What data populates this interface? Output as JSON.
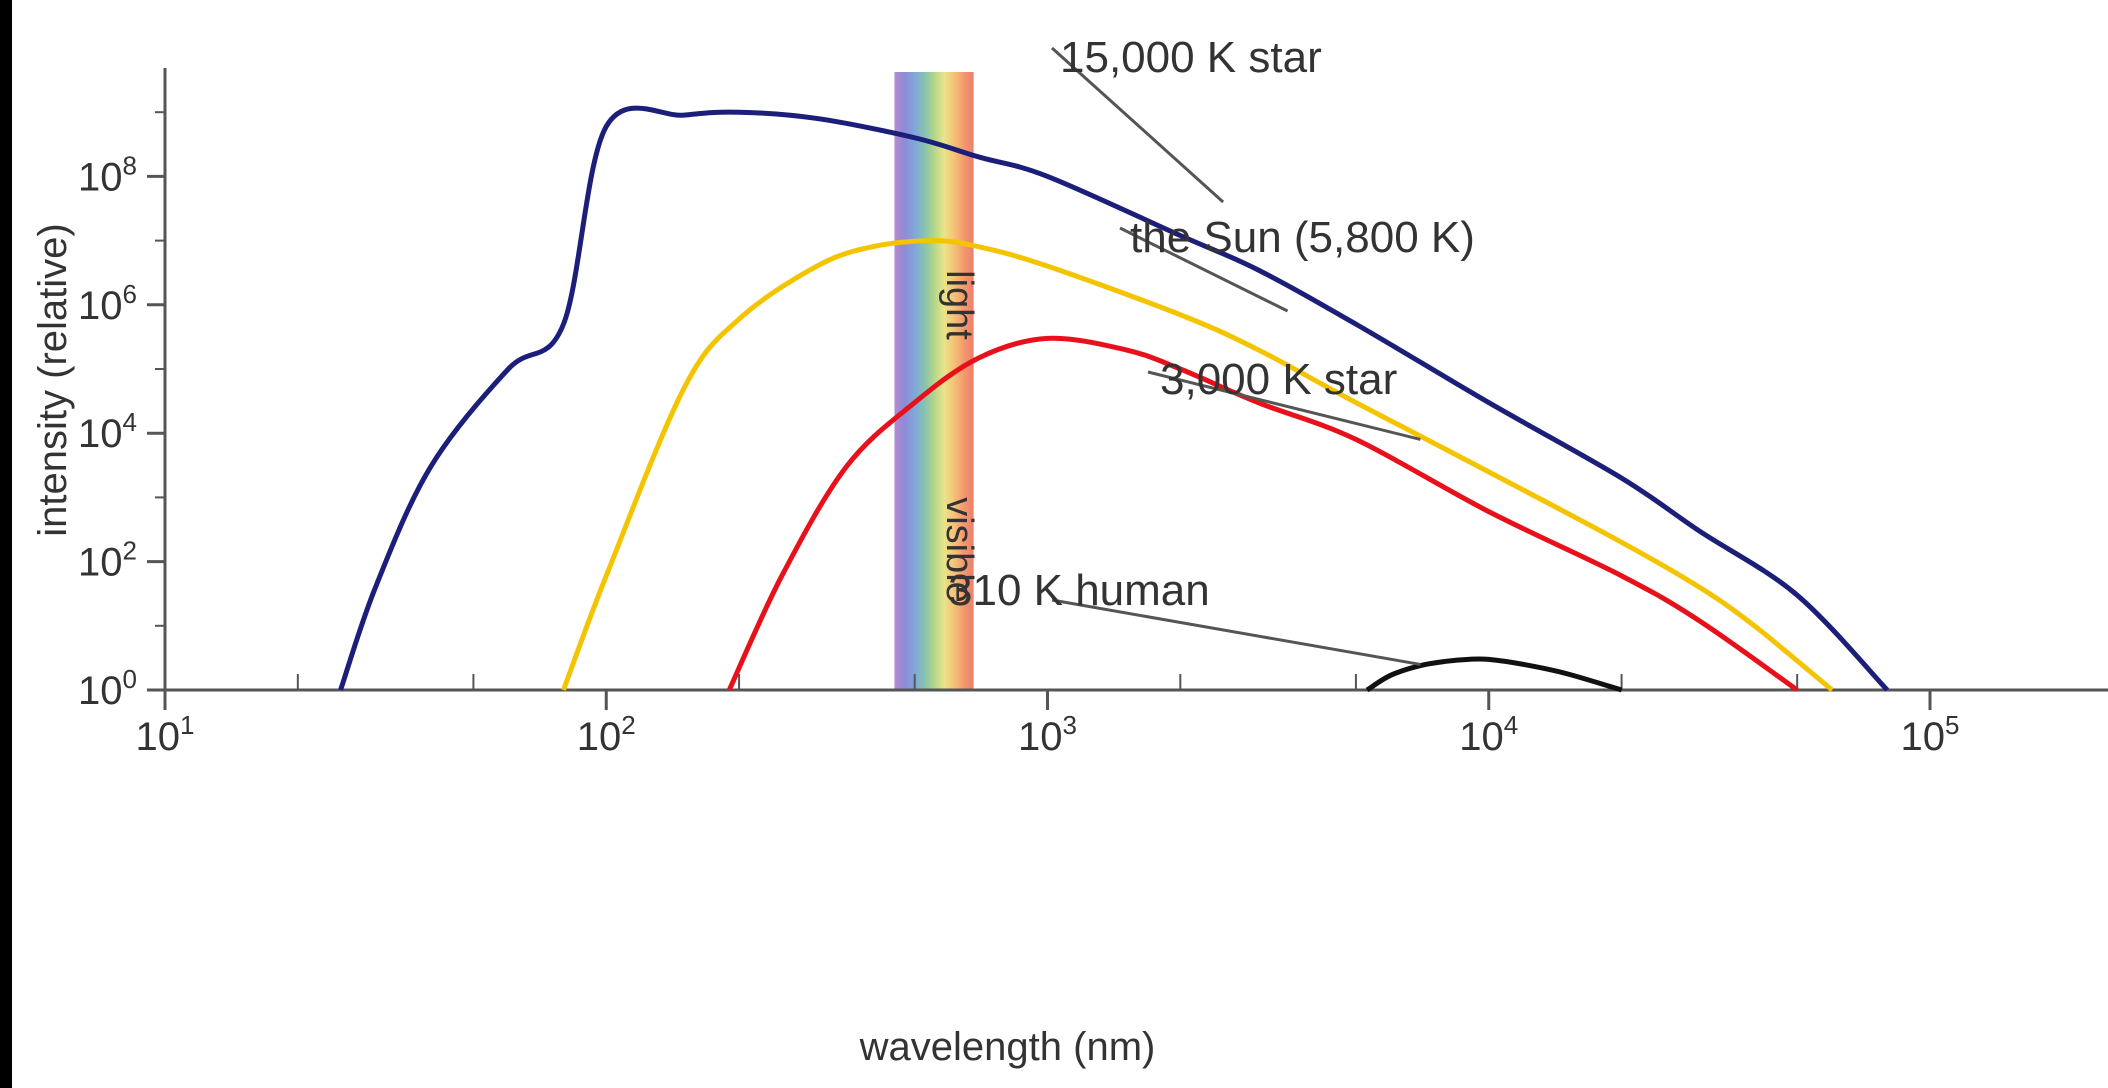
{
  "chart_data": {
    "type": "line",
    "xlabel": "wavelength (nm)",
    "ylabel": "intensity (relative)",
    "x_scale": "log",
    "y_scale": "log",
    "xlim": [
      10,
      100000
    ],
    "ylim": [
      1,
      10000000000
    ],
    "grid": false,
    "x_ticks": [
      {
        "value": 10,
        "base": "10",
        "exp": "1"
      },
      {
        "value": 100,
        "base": "10",
        "exp": "2"
      },
      {
        "value": 1000,
        "base": "10",
        "exp": "3"
      },
      {
        "value": 10000,
        "base": "10",
        "exp": "4"
      },
      {
        "value": 100000,
        "base": "10",
        "exp": "5"
      }
    ],
    "y_ticks": [
      {
        "value": 1,
        "base": "10",
        "exp": "0"
      },
      {
        "value": 100,
        "base": "10",
        "exp": "2"
      },
      {
        "value": 10000,
        "base": "10",
        "exp": "4"
      },
      {
        "value": 1000000,
        "base": "10",
        "exp": "6"
      },
      {
        "value": 100000000,
        "base": "10",
        "exp": "8"
      }
    ],
    "visible_band": {
      "range_nm": [
        450,
        680
      ],
      "label_bottom": "visible",
      "label_top": "light",
      "colors": [
        "#b68ad0",
        "#8f8ad6",
        "#7fa6dc",
        "#86c2b2",
        "#b3d58a",
        "#e9e58a",
        "#f5c377",
        "#f39a6e",
        "#ef7d6a"
      ]
    },
    "series": [
      {
        "label": "15,000 K star",
        "color": "#1b1f7a",
        "points": [
          [
            25,
            1
          ],
          [
            30,
            40
          ],
          [
            40,
            3000
          ],
          [
            60,
            100000
          ],
          [
            80,
            500000
          ],
          [
            100,
            600000000
          ],
          [
            150,
            900000000
          ],
          [
            200,
            1000000000
          ],
          [
            300,
            800000000
          ],
          [
            500,
            400000000
          ],
          [
            700,
            200000000
          ],
          [
            1000,
            100000000
          ],
          [
            2000,
            12000000
          ],
          [
            3000,
            3500000
          ],
          [
            5000,
            500000
          ],
          [
            10000,
            30000
          ],
          [
            20000,
            2000
          ],
          [
            30000,
            300
          ],
          [
            50000,
            30
          ],
          [
            80000,
            1
          ]
        ]
      },
      {
        "label": "the Sun (5,800 K)",
        "color": "#f5c400",
        "points": [
          [
            80,
            1
          ],
          [
            100,
            60
          ],
          [
            150,
            50000
          ],
          [
            200,
            600000
          ],
          [
            300,
            4000000
          ],
          [
            400,
            8000000
          ],
          [
            550,
            10000000
          ],
          [
            700,
            8000000
          ],
          [
            1000,
            4000000
          ],
          [
            2000,
            700000
          ],
          [
            3000,
            200000
          ],
          [
            5000,
            30000
          ],
          [
            10000,
            2500
          ],
          [
            20000,
            200
          ],
          [
            30000,
            40
          ],
          [
            40000,
            10
          ],
          [
            60000,
            1
          ]
        ]
      },
      {
        "label": "3,000 K star",
        "color": "#e8111b",
        "points": [
          [
            190,
            1
          ],
          [
            250,
            60
          ],
          [
            350,
            3000
          ],
          [
            500,
            30000
          ],
          [
            700,
            150000
          ],
          [
            1000,
            300000
          ],
          [
            1500,
            200000
          ],
          [
            2000,
            100000
          ],
          [
            3000,
            30000
          ],
          [
            5000,
            8000
          ],
          [
            10000,
            600
          ],
          [
            20000,
            60
          ],
          [
            30000,
            12
          ],
          [
            50000,
            1
          ]
        ]
      },
      {
        "label": "310 K human",
        "color": "#111111",
        "points": [
          [
            5300,
            1
          ],
          [
            6000,
            1.7
          ],
          [
            7000,
            2.4
          ],
          [
            8000,
            2.8
          ],
          [
            9000,
            3
          ],
          [
            10000,
            3
          ],
          [
            12000,
            2.5
          ],
          [
            15000,
            1.8
          ],
          [
            20000,
            1
          ]
        ]
      }
    ],
    "annotations": [
      {
        "text": "15,000 K star",
        "target": [
          2500,
          40000000
        ],
        "anchor": [
          40000,
          40000000000
        ],
        "label_offset": [
          0,
          0
        ]
      },
      {
        "text": "the Sun (5,800 K)",
        "target": [
          3500,
          800000
        ],
        "anchor": [
          90000,
          700000000
        ],
        "label_offset": [
          0,
          0
        ]
      },
      {
        "text": "3,000 K star",
        "target": [
          7000,
          8000
        ],
        "anchor": [
          120000,
          50000000
        ],
        "label_offset": [
          0,
          0
        ]
      },
      {
        "text": "310 K human",
        "target": [
          7000,
          2.5
        ],
        "anchor": [
          4000,
          300
        ],
        "label_offset": [
          0,
          0
        ]
      }
    ]
  }
}
